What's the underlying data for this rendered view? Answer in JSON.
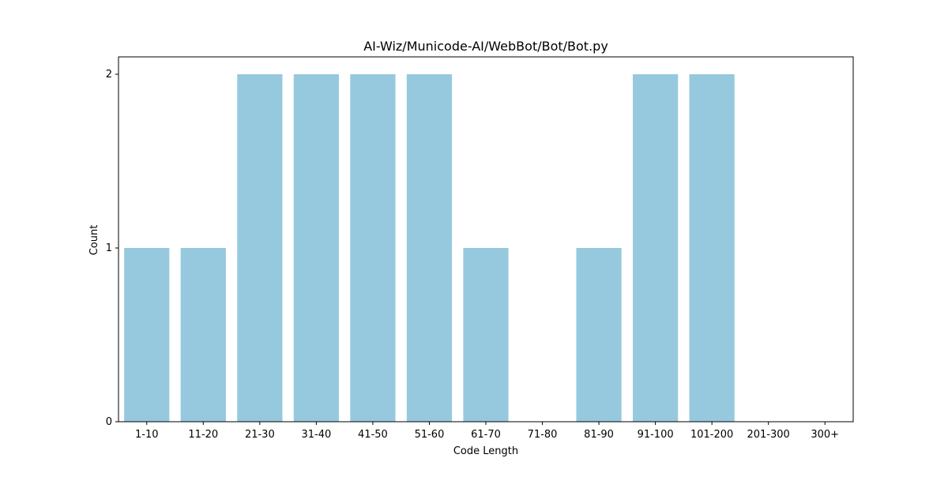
{
  "chart_data": {
    "type": "bar",
    "title": "AI-Wiz/Municode-AI/WebBot/Bot/Bot.py",
    "xlabel": "Code Length",
    "ylabel": "Count",
    "categories": [
      "1-10",
      "11-20",
      "21-30",
      "31-40",
      "41-50",
      "51-60",
      "61-70",
      "71-80",
      "81-90",
      "91-100",
      "101-200",
      "201-300",
      "300+"
    ],
    "values": [
      1,
      1,
      2,
      2,
      2,
      2,
      1,
      0,
      1,
      2,
      2,
      0,
      0
    ],
    "ylim": [
      0,
      2.1
    ],
    "yticks": [
      0,
      1,
      2
    ],
    "grid": false,
    "colors": {
      "bar": "#96c9de",
      "axis": "#000000"
    }
  }
}
